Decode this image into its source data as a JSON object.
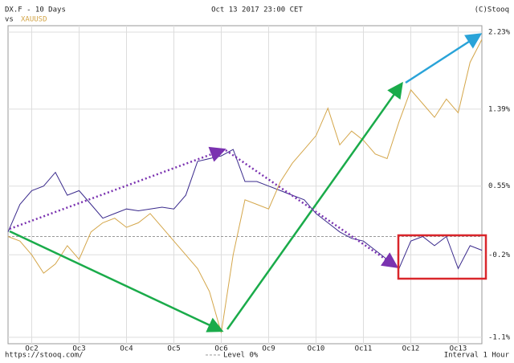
{
  "chart_data": {
    "type": "line",
    "title": "DX.F - 10 Days",
    "comparison_label": "vs",
    "timestamp": "Oct 13 2017 23:00 CET",
    "credit": "(C)Stooq",
    "source": "https://stooq.com/",
    "interval": "Interval 1 Hour",
    "reference_line": {
      "value": 0,
      "label": "Level 0%"
    },
    "xlim": [
      0,
      10
    ],
    "ylim": [
      -1.17,
      2.3
    ],
    "xticks": [
      {
        "value": 0.5,
        "label": "Oc2"
      },
      {
        "value": 1.5,
        "label": "Oc3"
      },
      {
        "value": 2.5,
        "label": "Oc4"
      },
      {
        "value": 3.5,
        "label": "Oc5"
      },
      {
        "value": 4.5,
        "label": "Oc6"
      },
      {
        "value": 5.5,
        "label": "Oc9"
      },
      {
        "value": 6.5,
        "label": "Oc10"
      },
      {
        "value": 7.5,
        "label": "Oc11"
      },
      {
        "value": 8.5,
        "label": "Oc12"
      },
      {
        "value": 9.5,
        "label": "Oc13"
      }
    ],
    "yticks": [
      {
        "value": 2.23,
        "label": "2.23%"
      },
      {
        "value": 1.39,
        "label": "1.39%"
      },
      {
        "value": 0.55,
        "label": "0.55%"
      },
      {
        "value": -0.2,
        "label": "-0.2%"
      },
      {
        "value": -1.1,
        "label": "-1.1%"
      }
    ],
    "grid": true,
    "x": [
      0,
      0.25,
      0.5,
      0.75,
      1,
      1.25,
      1.5,
      1.75,
      2,
      2.25,
      2.5,
      2.75,
      3,
      3.25,
      3.5,
      3.75,
      4,
      4.25,
      4.5,
      4.75,
      5,
      5.25,
      5.5,
      5.75,
      6,
      6.25,
      6.5,
      6.75,
      7,
      7.25,
      7.5,
      7.75,
      8,
      8.25,
      8.5,
      8.75,
      9,
      9.25,
      9.5,
      9.75,
      10
    ],
    "series": [
      {
        "color": "#3a2a8c",
        "values": [
          0.05,
          0.35,
          0.5,
          0.55,
          0.7,
          0.45,
          0.5,
          0.35,
          0.2,
          0.25,
          0.3,
          0.28,
          0.3,
          0.32,
          0.3,
          0.45,
          0.82,
          0.85,
          0.88,
          0.95,
          0.6,
          0.6,
          0.55,
          0.5,
          0.45,
          0.4,
          0.25,
          0.15,
          0.05,
          -0.02,
          -0.05,
          -0.15,
          -0.25,
          -0.35,
          -0.05,
          0.0,
          -0.1,
          0.0,
          -0.35,
          -0.1,
          -0.15
        ]
      },
      {
        "name": "XAUUSD",
        "color": "#d4a64a",
        "values": [
          0.0,
          -0.05,
          -0.2,
          -0.4,
          -0.3,
          -0.1,
          -0.25,
          0.05,
          0.15,
          0.2,
          0.1,
          0.15,
          0.25,
          0.1,
          -0.05,
          -0.2,
          -0.35,
          -0.6,
          -1.05,
          -0.2,
          0.4,
          0.35,
          0.3,
          0.6,
          0.8,
          0.95,
          1.1,
          1.4,
          1.0,
          1.15,
          1.05,
          0.9,
          0.85,
          1.25,
          1.6,
          1.45,
          1.3,
          1.5,
          1.35,
          1.9,
          2.15
        ]
      }
    ]
  }
}
